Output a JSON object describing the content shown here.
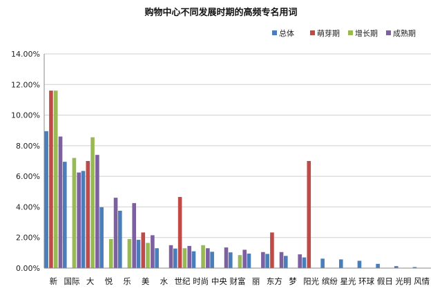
{
  "chart_data": {
    "type": "bar",
    "title": "购物中心不同发展时期的高频专名用词",
    "xlabel": "",
    "ylabel": "",
    "ylim": [
      0,
      14
    ],
    "y_ticks": [
      "0.00%",
      "2.00%",
      "4.00%",
      "6.00%",
      "8.00%",
      "10.00%",
      "12.00%",
      "14.00%"
    ],
    "grid": true,
    "legend_position": "top-right",
    "categories": [
      "新",
      "国际",
      "大",
      "悦",
      "乐",
      "美",
      "水",
      "世纪",
      "时尚",
      "中央",
      "财富",
      "丽",
      "东方",
      "梦",
      "阳光",
      "缤纷",
      "星光",
      "环球",
      "假日",
      "光明",
      "风情"
    ],
    "series": [
      {
        "name": "总体",
        "color": "#4a7ebb",
        "values": [
          8.95,
          6.95,
          6.35,
          3.98,
          3.75,
          1.85,
          1.3,
          1.28,
          1.1,
          1.07,
          1.03,
          0.95,
          0.93,
          0.8,
          0.7,
          0.62,
          0.57,
          0.48,
          0.28,
          0.13,
          0.07
        ]
      },
      {
        "name": "萌芽期",
        "color": "#be4b48",
        "values": [
          11.6,
          0,
          7.0,
          0,
          0,
          2.33,
          0,
          4.65,
          0,
          0,
          0,
          0,
          2.33,
          0,
          7.0,
          0,
          0,
          0,
          0,
          0,
          0
        ]
      },
      {
        "name": "增长期",
        "color": "#98b954",
        "values": [
          11.6,
          7.2,
          8.55,
          1.9,
          1.9,
          1.65,
          0,
          1.3,
          1.5,
          0,
          0.85,
          0,
          0,
          0,
          0,
          0,
          0,
          0,
          0,
          0,
          0
        ]
      },
      {
        "name": "成熟期",
        "color": "#7d60a0",
        "values": [
          8.6,
          6.25,
          7.4,
          4.6,
          4.25,
          2.15,
          1.5,
          1.45,
          1.3,
          1.35,
          1.2,
          1.05,
          1.05,
          0.9,
          0,
          0,
          0,
          0,
          0,
          0,
          0
        ]
      }
    ]
  }
}
